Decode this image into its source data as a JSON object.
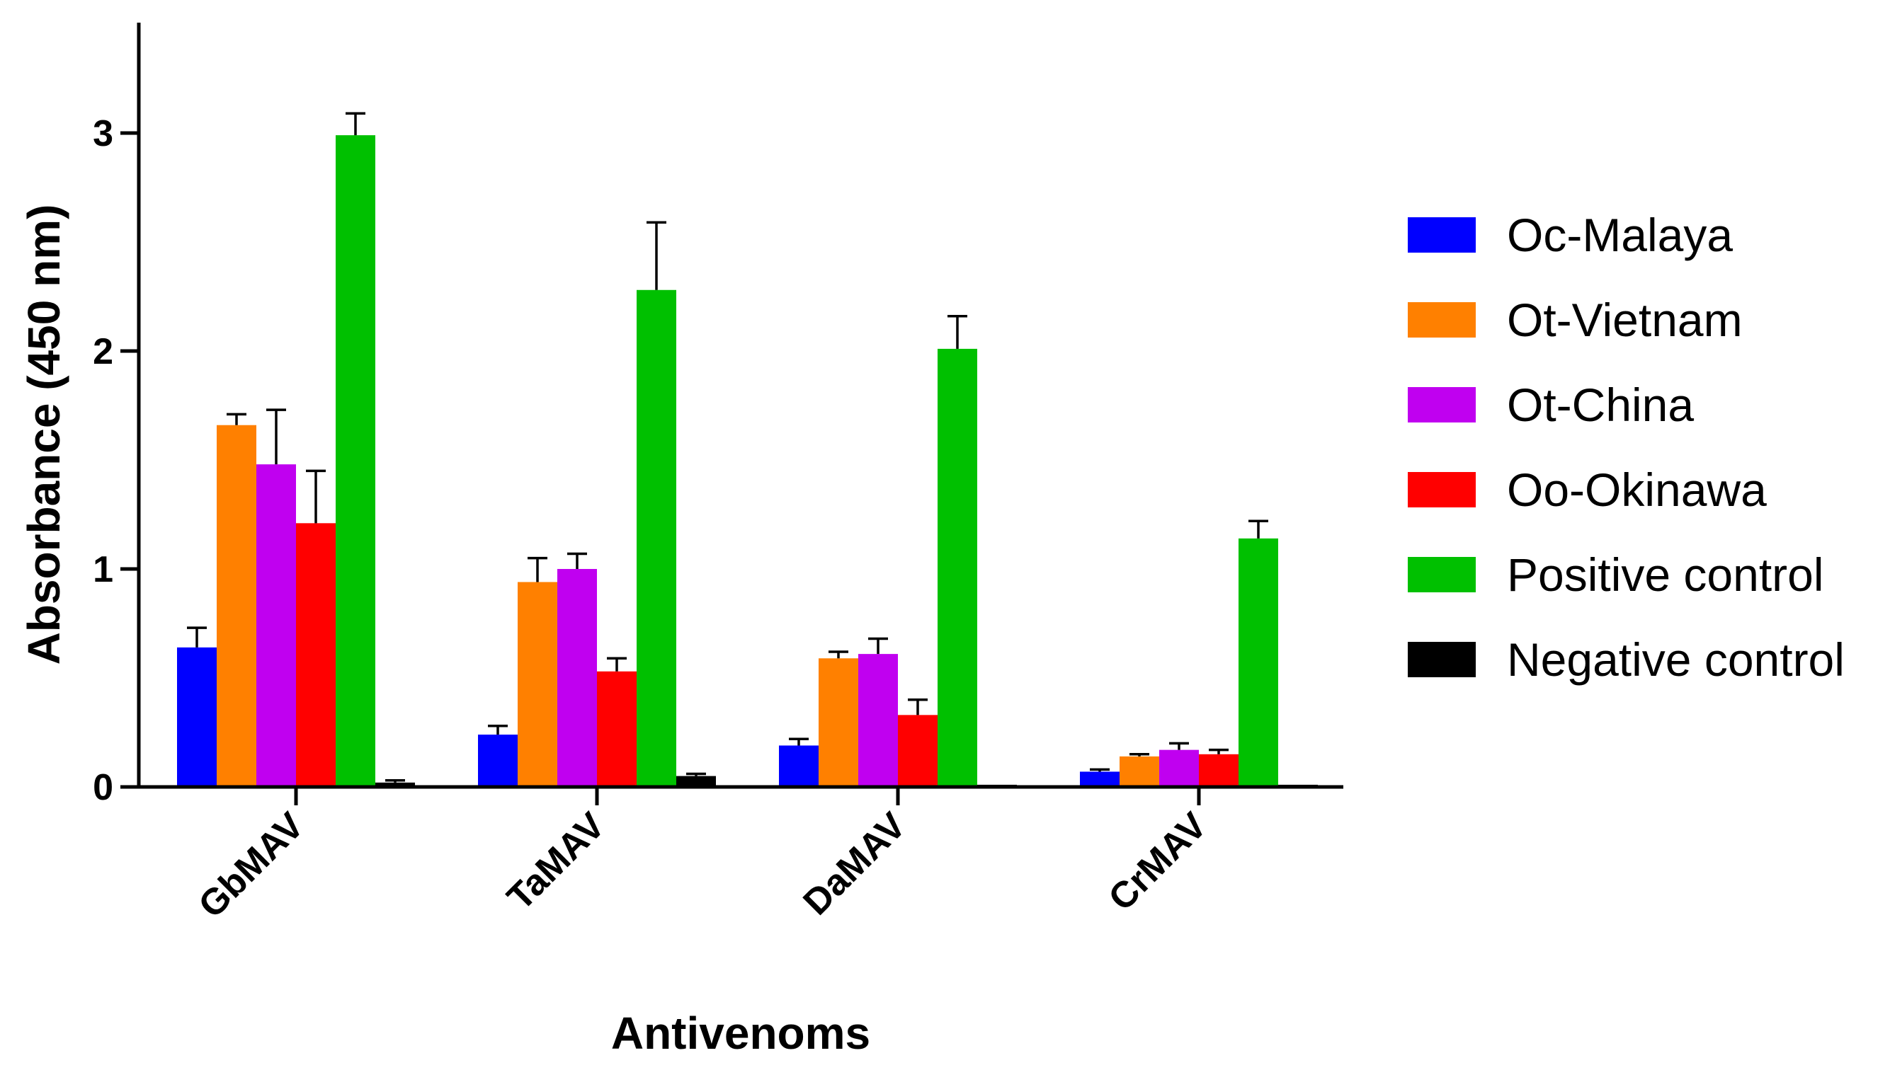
{
  "chart_data": {
    "type": "bar",
    "title": "",
    "xlabel": "Antivenoms",
    "ylabel": "Absorbance (450 nm)",
    "ylim": [
      0,
      3.5
    ],
    "yticks": [
      "0",
      "1",
      "2",
      "3"
    ],
    "ytick_values": [
      0,
      1,
      2,
      3
    ],
    "categories": [
      "GbMAV",
      "TaMAV",
      "DaMAV",
      "CrMAV"
    ],
    "grid": false,
    "legend_position": "right",
    "series": [
      {
        "name": "Oc-Malaya",
        "color": "#0000ff",
        "values": [
          0.64,
          0.24,
          0.19,
          0.07
        ],
        "errors": [
          0.09,
          0.04,
          0.03,
          0.01
        ]
      },
      {
        "name": "Ot-Vietnam",
        "color": "#ff8000",
        "values": [
          1.66,
          0.94,
          0.59,
          0.14
        ],
        "errors": [
          0.05,
          0.11,
          0.03,
          0.01
        ]
      },
      {
        "name": "Ot-China",
        "color": "#c000f0",
        "values": [
          1.48,
          1.0,
          0.61,
          0.17
        ],
        "errors": [
          0.25,
          0.07,
          0.07,
          0.03
        ]
      },
      {
        "name": "Oo-Okinawa",
        "color": "#ff0000",
        "values": [
          1.21,
          0.53,
          0.33,
          0.15
        ],
        "errors": [
          0.24,
          0.06,
          0.07,
          0.02
        ]
      },
      {
        "name": "Positive control",
        "color": "#00c000",
        "values": [
          2.99,
          2.28,
          2.01,
          1.14
        ],
        "errors": [
          0.1,
          0.31,
          0.15,
          0.08
        ]
      },
      {
        "name": "Negative control",
        "color": "#000000",
        "values": [
          0.02,
          0.05,
          0.01,
          0.01
        ],
        "errors": [
          0.01,
          0.01,
          0.0,
          0.0
        ]
      }
    ]
  }
}
